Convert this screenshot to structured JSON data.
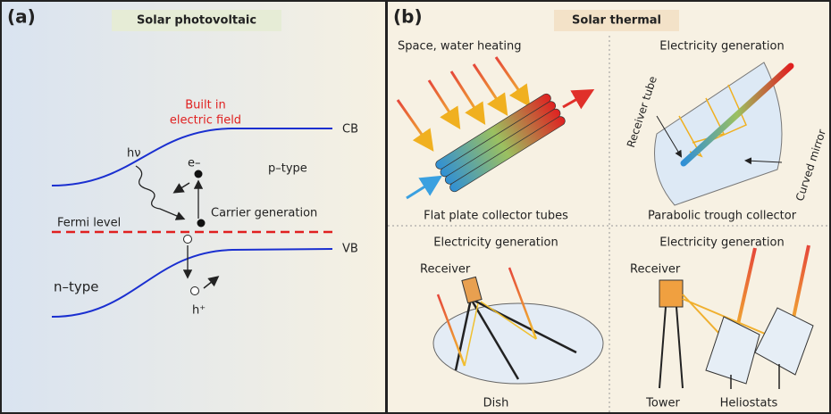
{
  "panel_a": {
    "label": "(a)",
    "title": "Solar photovoltaic",
    "field_label": [
      "Built in",
      "electric field"
    ],
    "cb": "CB",
    "vb": "VB",
    "photon": "hν",
    "electron": "e–",
    "hole": "h⁺",
    "p_type": "p–type",
    "n_type": "n–type",
    "carrier": "Carrier generation",
    "fermi": "Fermi level"
  },
  "panel_b": {
    "label": "(b)",
    "title": "Solar thermal",
    "quadrants": [
      {
        "heading": "Space, water heating",
        "caption": "Flat plate collector tubes"
      },
      {
        "heading": "Electricity generation",
        "caption": "Parabolic trough collector",
        "tube": "Receiver tube",
        "mirror": "Curved mirror"
      },
      {
        "heading": "Electricity generation",
        "receiver": "Receiver",
        "caption": "Dish"
      },
      {
        "heading": "Electricity generation",
        "receiver": "Receiver",
        "tower": "Tower",
        "heliostats": "Heliostats"
      }
    ]
  }
}
